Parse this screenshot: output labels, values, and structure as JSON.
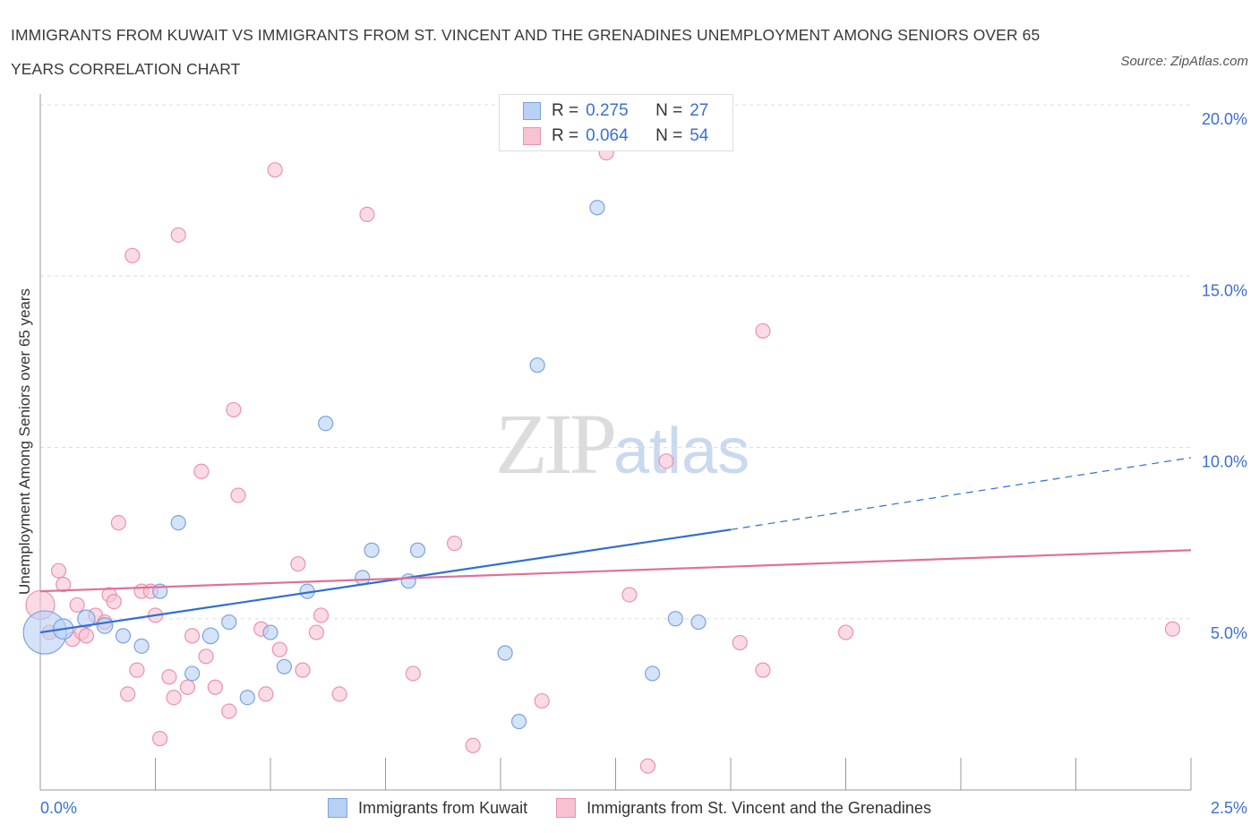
{
  "title": "IMMIGRANTS FROM KUWAIT VS IMMIGRANTS FROM ST. VINCENT AND THE GRENADINES UNEMPLOYMENT AMONG SENIORS OVER 65 YEARS CORRELATION CHART",
  "source": "Source: ZipAtlas.com",
  "watermark": {
    "zip": "ZIP",
    "atlas": "atlas"
  },
  "colors": {
    "series1_fill": "#b9d0f5",
    "series1_stroke": "#7aa3e0",
    "series1_line": "#2f6fd0",
    "series2_fill": "#f7c3d3",
    "series2_stroke": "#ea92ae",
    "series2_line": "#e0709a",
    "axis_label": "#3b6fd0",
    "grid": "#dddddd"
  },
  "legend_top": {
    "rows": [
      {
        "r_label": "R =",
        "r_value": "0.275",
        "n_label": "N =",
        "n_value": "27"
      },
      {
        "r_label": "R =",
        "r_value": "0.064",
        "n_label": "N =",
        "n_value": "54"
      }
    ]
  },
  "legend_bottom": [
    "Immigrants from Kuwait",
    "Immigrants from St. Vincent and the Grenadines"
  ],
  "chart_data": {
    "type": "scatter",
    "title": "IMMIGRANTS FROM KUWAIT VS IMMIGRANTS FROM ST. VINCENT AND THE GRENADINES UNEMPLOYMENT AMONG SENIORS OVER 65 YEARS CORRELATION CHART",
    "xlabel": "",
    "ylabel": "Unemployment Among Seniors over 65 years",
    "xlim": [
      0,
      2.5
    ],
    "ylim": [
      0,
      20
    ],
    "x_tick_labels": [
      "0.0%",
      "2.5%"
    ],
    "y_ticks": [
      5,
      10,
      15,
      20
    ],
    "y_tick_labels": [
      "5.0%",
      "10.0%",
      "15.0%",
      "20.0%"
    ],
    "grid": true,
    "legend_position": "top-center",
    "series": [
      {
        "name": "Immigrants from Kuwait",
        "points": [
          [
            0.01,
            4.6
          ],
          [
            0.05,
            4.7
          ],
          [
            0.1,
            5.0
          ],
          [
            0.14,
            4.8
          ],
          [
            0.18,
            4.5
          ],
          [
            0.22,
            4.2
          ],
          [
            0.26,
            5.8
          ],
          [
            0.3,
            7.8
          ],
          [
            0.33,
            3.4
          ],
          [
            0.37,
            4.5
          ],
          [
            0.41,
            4.9
          ],
          [
            0.45,
            2.7
          ],
          [
            0.5,
            4.6
          ],
          [
            0.53,
            3.6
          ],
          [
            0.58,
            5.8
          ],
          [
            0.62,
            10.7
          ],
          [
            0.7,
            6.2
          ],
          [
            0.72,
            7.0
          ],
          [
            0.8,
            6.1
          ],
          [
            0.82,
            7.0
          ],
          [
            1.01,
            4.0
          ],
          [
            1.04,
            2.0
          ],
          [
            1.08,
            12.4
          ],
          [
            1.21,
            17.0
          ],
          [
            1.33,
            3.4
          ],
          [
            1.38,
            5.0
          ],
          [
            1.43,
            4.9
          ]
        ],
        "sizes": [
          30,
          14,
          12,
          11,
          10,
          10,
          10,
          10,
          10,
          11,
          10,
          10,
          10,
          10,
          10,
          10,
          10,
          10,
          10,
          10,
          10,
          10,
          10,
          10,
          10,
          10,
          10
        ],
        "trend": {
          "x": [
            0,
            1.5
          ],
          "y": [
            4.6,
            7.6
          ],
          "dashed_to": [
            2.5,
            9.7
          ]
        }
      },
      {
        "name": "Immigrants from St. Vincent and the Grenadines",
        "points": [
          [
            0.0,
            5.4
          ],
          [
            0.02,
            4.6
          ],
          [
            0.04,
            6.4
          ],
          [
            0.05,
            6.0
          ],
          [
            0.07,
            4.4
          ],
          [
            0.08,
            5.4
          ],
          [
            0.09,
            4.6
          ],
          [
            0.1,
            4.5
          ],
          [
            0.12,
            5.1
          ],
          [
            0.14,
            4.9
          ],
          [
            0.15,
            5.7
          ],
          [
            0.16,
            5.5
          ],
          [
            0.17,
            7.8
          ],
          [
            0.19,
            2.8
          ],
          [
            0.2,
            15.6
          ],
          [
            0.21,
            3.5
          ],
          [
            0.22,
            5.8
          ],
          [
            0.24,
            5.8
          ],
          [
            0.25,
            5.1
          ],
          [
            0.26,
            1.5
          ],
          [
            0.28,
            3.3
          ],
          [
            0.29,
            2.7
          ],
          [
            0.3,
            16.2
          ],
          [
            0.32,
            3.0
          ],
          [
            0.33,
            4.5
          ],
          [
            0.35,
            9.3
          ],
          [
            0.36,
            3.9
          ],
          [
            0.38,
            3.0
          ],
          [
            0.41,
            2.3
          ],
          [
            0.42,
            11.1
          ],
          [
            0.43,
            8.6
          ],
          [
            0.48,
            4.7
          ],
          [
            0.49,
            2.8
          ],
          [
            0.51,
            18.1
          ],
          [
            0.52,
            4.1
          ],
          [
            0.56,
            6.6
          ],
          [
            0.57,
            3.5
          ],
          [
            0.6,
            4.6
          ],
          [
            0.61,
            5.1
          ],
          [
            0.65,
            2.8
          ],
          [
            0.71,
            16.8
          ],
          [
            0.81,
            3.4
          ],
          [
            0.9,
            7.2
          ],
          [
            0.94,
            1.3
          ],
          [
            1.09,
            2.6
          ],
          [
            1.23,
            18.6
          ],
          [
            1.28,
            5.7
          ],
          [
            1.32,
            0.7
          ],
          [
            1.36,
            9.6
          ],
          [
            1.52,
            4.3
          ],
          [
            1.57,
            3.5
          ],
          [
            1.57,
            13.4
          ],
          [
            1.75,
            4.6
          ],
          [
            2.46,
            4.7
          ]
        ],
        "sizes": [
          20,
          10,
          10,
          10,
          10,
          10,
          10,
          10,
          10,
          10,
          10,
          10,
          10,
          10,
          10,
          10,
          10,
          10,
          10,
          10,
          10,
          10,
          10,
          10,
          10,
          10,
          10,
          10,
          10,
          10,
          10,
          10,
          10,
          10,
          10,
          10,
          10,
          10,
          10,
          10,
          10,
          10,
          10,
          10,
          10,
          10,
          10,
          10,
          10,
          10,
          10,
          10,
          10,
          10
        ],
        "trend": {
          "x": [
            0,
            2.5
          ],
          "y": [
            5.8,
            7.0
          ]
        }
      }
    ]
  }
}
